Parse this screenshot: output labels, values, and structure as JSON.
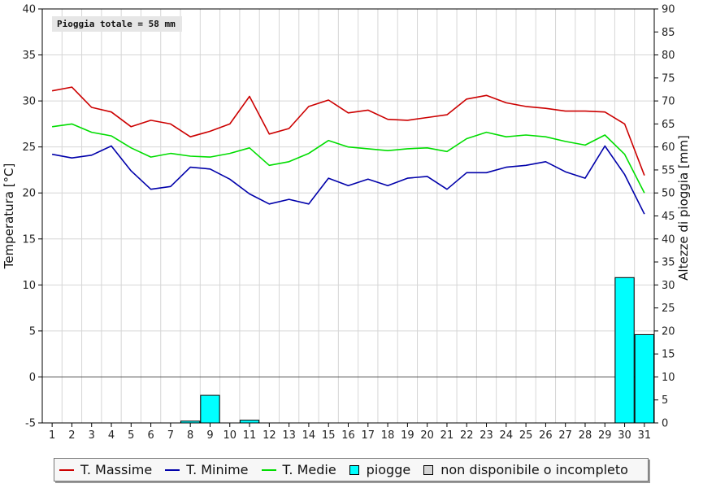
{
  "note": "Pioggia totale = 58 mm",
  "chart_data": {
    "type": "line",
    "ylabel_left": "Temperatura [°C]",
    "ylabel_right": "Altezze di pioggia [mm]",
    "ylim_left": [
      -5,
      40
    ],
    "ylim_right": [
      0,
      90
    ],
    "yticks_left": [
      -5,
      0,
      5,
      10,
      15,
      20,
      25,
      30,
      35,
      40
    ],
    "yticks_right": [
      0,
      5,
      10,
      15,
      20,
      25,
      30,
      35,
      40,
      45,
      50,
      55,
      60,
      65,
      70,
      75,
      80,
      85,
      90
    ],
    "grid": true,
    "legend_position": "bottom",
    "x": [
      "1",
      "2",
      "3",
      "4",
      "5",
      "6",
      "7",
      "8",
      "9",
      "10",
      "11",
      "12",
      "13",
      "14",
      "15",
      "16",
      "17",
      "18",
      "19",
      "20",
      "21",
      "22",
      "23",
      "24",
      "25",
      "26",
      "27",
      "28",
      "29",
      "30",
      "31"
    ],
    "series": [
      {
        "name": "T. Massime",
        "color": "#cc0000",
        "values": [
          31.1,
          31.5,
          29.3,
          28.8,
          27.2,
          27.9,
          27.5,
          26.1,
          26.7,
          27.5,
          30.5,
          26.4,
          27.0,
          29.4,
          30.1,
          28.7,
          29.0,
          28.0,
          27.9,
          28.2,
          28.5,
          30.2,
          30.6,
          29.8,
          29.4,
          29.2,
          28.9,
          28.9,
          28.8,
          27.5,
          21.9
        ]
      },
      {
        "name": "T. Minime",
        "color": "#0000aa",
        "values": [
          24.2,
          23.8,
          24.1,
          25.1,
          22.4,
          20.4,
          20.7,
          22.8,
          22.6,
          21.5,
          19.9,
          18.8,
          19.3,
          18.8,
          21.6,
          20.8,
          21.5,
          20.8,
          21.6,
          21.8,
          20.4,
          22.2,
          22.2,
          22.8,
          23.0,
          23.4,
          22.3,
          21.6,
          25.1,
          22.0,
          17.7
        ]
      },
      {
        "name": "T. Medie",
        "color": "#00dd00",
        "values": [
          27.2,
          27.5,
          26.6,
          26.2,
          24.9,
          23.9,
          24.3,
          24.0,
          23.9,
          24.3,
          24.9,
          23.0,
          23.4,
          24.3,
          25.7,
          25.0,
          24.8,
          24.6,
          24.8,
          24.9,
          24.5,
          25.9,
          26.6,
          26.1,
          26.3,
          26.1,
          25.6,
          25.2,
          26.3,
          24.2,
          20.0
        ]
      }
    ],
    "bars": {
      "name": "piogge",
      "color": "#00ffff",
      "values": [
        0,
        0,
        0,
        0,
        0,
        0,
        0,
        0.4,
        6.0,
        0,
        0.6,
        0,
        0,
        0,
        0,
        0,
        0,
        0,
        0,
        0,
        0,
        0,
        0,
        0,
        0,
        0,
        0,
        0,
        0,
        31.6,
        19.2
      ]
    }
  },
  "legend": [
    {
      "label": "T. Massime",
      "kind": "line",
      "color": "#cc0000"
    },
    {
      "label": "T. Minime",
      "kind": "line",
      "color": "#0000aa"
    },
    {
      "label": "T. Medie",
      "kind": "line",
      "color": "#00dd00"
    },
    {
      "label": "piogge",
      "kind": "box",
      "color": "#00ffff"
    },
    {
      "label": "non disponibile o incompleto",
      "kind": "box",
      "color": "#d4d4d4"
    }
  ]
}
